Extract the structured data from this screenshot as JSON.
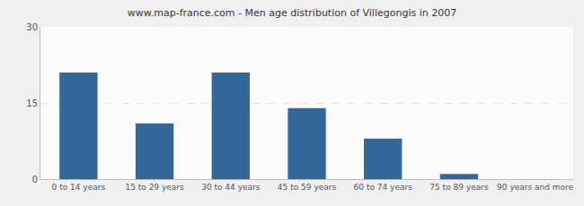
{
  "chart_data": {
    "type": "bar",
    "title": "www.map-france.com - Men age distribution of Villegongis in 2007",
    "categories": [
      "0 to 14 years",
      "15 to 29 years",
      "30 to 44 years",
      "45 to 59 years",
      "60 to 74 years",
      "75 to 89 years",
      "90 years and more"
    ],
    "values": [
      21,
      11,
      21,
      14,
      8,
      1,
      0
    ],
    "color": "#336699",
    "ylim": [
      0,
      30
    ],
    "yticks": [
      0,
      15,
      30
    ],
    "grid": true
  }
}
